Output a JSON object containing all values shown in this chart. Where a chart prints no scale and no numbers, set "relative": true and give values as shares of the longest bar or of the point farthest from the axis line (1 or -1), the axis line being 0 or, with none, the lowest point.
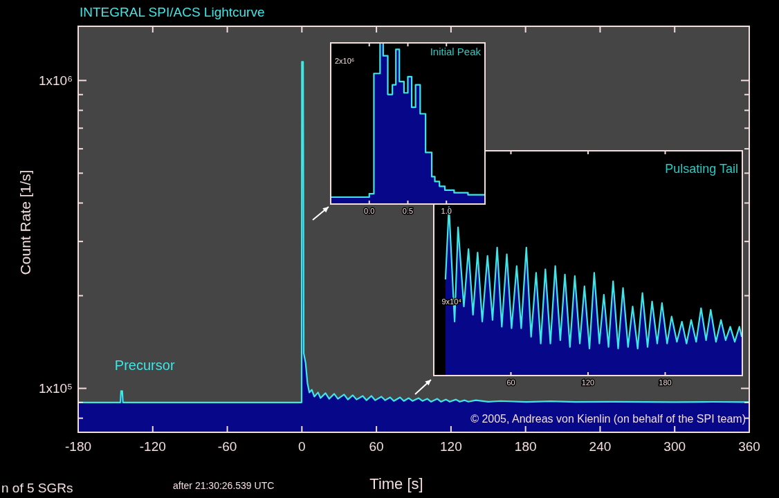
{
  "chart_data": [
    {
      "type": "area",
      "title": "INTEGRAL SPI/ACS Lightcurve",
      "xlabel": "Time [s]",
      "ylabel": "Count Rate [1/s]",
      "log": "y",
      "annotations": [
        "© 2005, Andreas von Kienlin (on behalf of the SPI team)",
        "after 21:30:26.539 UTC",
        "n of 5 SGRs",
        {
          "text": "Precursor",
          "x": -145,
          "y": 98000
        }
      ],
      "xlim": [
        -180,
        360
      ],
      "xticks": [
        -180,
        -120,
        -60,
        0,
        60,
        120,
        180,
        240,
        300,
        360
      ],
      "ylim": [
        72000,
        1500000
      ],
      "yticks": [
        {
          "value": 80000,
          "label": null
        },
        {
          "value": 90000,
          "label": null
        },
        {
          "value": 100000,
          "label": "1x10⁵"
        },
        {
          "value": 200000,
          "label": null
        },
        {
          "value": 300000,
          "label": null
        },
        {
          "value": 400000,
          "label": null
        },
        {
          "value": 500000,
          "label": null
        },
        {
          "value": 600000,
          "label": null
        },
        {
          "value": 700000,
          "label": null
        },
        {
          "value": 800000,
          "label": null
        },
        {
          "value": 900000,
          "label": null
        },
        {
          "value": 1000000,
          "label": "1x10⁶"
        }
      ],
      "series": [
        {
          "color": "#3fe6e6",
          "x": [
            -180,
            -146,
            -145.5,
            -144.5,
            -144,
            -1,
            -0.2,
            0,
            1,
            1.5,
            3,
            4.5,
            6,
            8,
            10,
            13,
            15,
            19,
            22,
            26,
            29,
            34,
            37,
            41,
            44,
            49,
            52,
            56,
            59,
            64,
            67,
            71,
            74,
            79,
            82,
            86,
            89,
            94,
            97,
            101,
            104,
            109,
            112,
            116,
            119,
            124,
            127,
            131,
            134,
            140,
            150,
            160,
            180,
            200,
            220,
            250,
            300,
            330,
            360
          ],
          "values": [
            90000,
            90000,
            98000,
            98000,
            90000,
            90000,
            90000,
            1150000,
            1150000,
            130000,
            121000,
            104000,
            97000,
            99000,
            94000,
            97000,
            93000,
            96500,
            92500,
            96000,
            92500,
            95500,
            92000,
            95000,
            92000,
            94500,
            91500,
            94500,
            91500,
            94000,
            91500,
            93500,
            91000,
            93500,
            91000,
            93000,
            91000,
            93000,
            91000,
            92500,
            90500,
            92500,
            90500,
            92000,
            90500,
            92000,
            90500,
            91500,
            90500,
            91500,
            90500,
            91000,
            90300,
            90800,
            90300,
            90500,
            90200,
            90400,
            90200
          ]
        }
      ]
    },
    {
      "type": "area",
      "title": "Initial Peak",
      "relative": true,
      "annotations": [
        "2x10⁶"
      ],
      "xlim": [
        -0.5,
        1.5
      ],
      "xticks": [
        {
          "value": 0,
          "label": "0.0"
        },
        {
          "value": 0.5,
          "label": "0.5"
        },
        {
          "value": 1,
          "label": "1.0"
        }
      ],
      "series": [
        {
          "color": "#3fe6e6",
          "x": [
            -0.5,
            0,
            0,
            0.06,
            0.06,
            0.14,
            0.14,
            0.18,
            0.18,
            0.24,
            0.24,
            0.3,
            0.3,
            0.345,
            0.345,
            0.39,
            0.39,
            0.45,
            0.45,
            0.5,
            0.5,
            0.55,
            0.55,
            0.6,
            0.6,
            0.66,
            0.66,
            0.73,
            0.73,
            0.81,
            0.81,
            0.85,
            0.85,
            0.91,
            0.91,
            0.98,
            0.98,
            1.1,
            1.1,
            1.28,
            1.28,
            1.5
          ],
          "values": [
            0.043,
            0.043,
            0.064,
            0.064,
            0.81,
            0.81,
            1.0,
            1.0,
            0.92,
            0.92,
            0.68,
            0.68,
            0.74,
            0.74,
            0.96,
            0.96,
            0.76,
            0.76,
            0.69,
            0.69,
            0.79,
            0.79,
            0.6,
            0.6,
            0.74,
            0.74,
            0.56,
            0.56,
            0.32,
            0.32,
            0.17,
            0.17,
            0.14,
            0.14,
            0.11,
            0.11,
            0.086,
            0.086,
            0.07,
            0.07,
            0.057,
            0.057
          ]
        }
      ]
    },
    {
      "type": "area",
      "title": "Pulsating Tail",
      "relative": true,
      "annotations": [
        "9x10⁴"
      ],
      "xlim": [
        0,
        240
      ],
      "xticks": [
        60,
        120,
        180
      ],
      "series": [
        {
          "color": "#3fe6e6",
          "x": [
            9.1,
            11.8,
            16.2,
            18.9,
            23.4,
            27,
            30.5,
            34.1,
            37.7,
            41.8,
            45.7,
            49.3,
            52.9,
            56.8,
            60.5,
            64.5,
            68,
            72,
            75.7,
            79.6,
            83.2,
            86.8,
            90.7,
            94.5,
            98.4,
            102,
            105.9,
            109.7,
            113.6,
            117.2,
            121.1,
            124.8,
            128.8,
            132.3,
            135.9,
            139.5,
            143.4,
            147.2,
            151.1,
            154.7,
            158.6,
            162.3,
            166.3,
            169.8,
            173.8,
            177.5,
            181.5,
            185,
            189.1,
            193,
            196.6,
            200.2,
            204.1,
            207.9,
            211.8,
            215.4,
            219.5,
            223.4,
            227,
            230.6,
            234.1,
            237.7,
            239.5
          ],
          "values": [
            0.57,
            1.0,
            0.32,
            0.88,
            0.41,
            0.75,
            0.36,
            0.73,
            0.32,
            0.71,
            0.33,
            0.76,
            0.29,
            0.72,
            0.28,
            0.65,
            0.28,
            0.76,
            0.23,
            0.61,
            0.19,
            0.63,
            0.19,
            0.65,
            0.21,
            0.6,
            0.17,
            0.59,
            0.19,
            0.53,
            0.16,
            0.61,
            0.19,
            0.48,
            0.17,
            0.56,
            0.16,
            0.52,
            0.17,
            0.41,
            0.16,
            0.49,
            0.17,
            0.44,
            0.19,
            0.43,
            0.19,
            0.35,
            0.2,
            0.32,
            0.19,
            0.33,
            0.2,
            0.4,
            0.21,
            0.39,
            0.2,
            0.33,
            0.21,
            0.29,
            0.2,
            0.29,
            0.23
          ]
        }
      ]
    }
  ]
}
